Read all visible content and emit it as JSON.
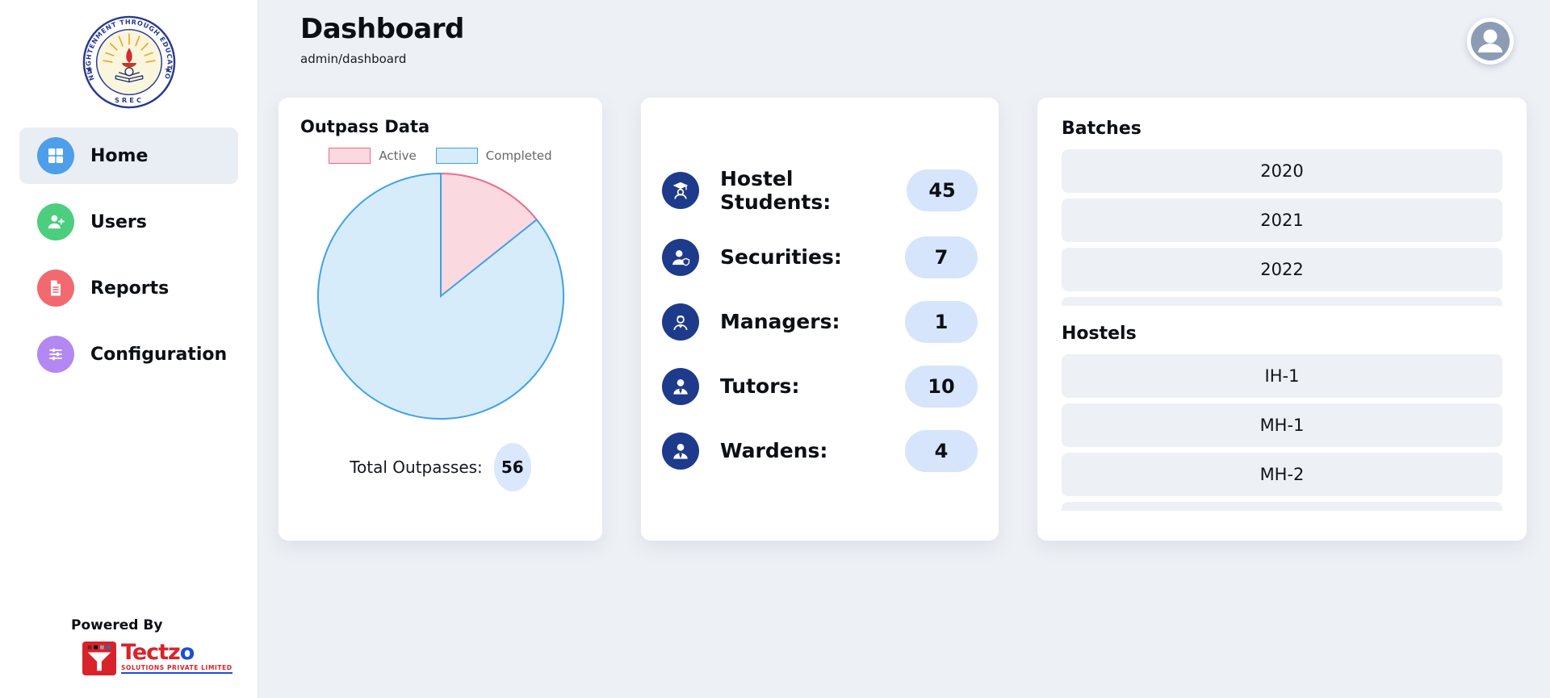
{
  "app": {
    "title": "Dashboard",
    "breadcrumb": "admin/dashboard"
  },
  "sidebar": {
    "logo": {
      "top_text": "ENLIGHTENMENT THROUGH EDUCATION",
      "bottom_text": "SREC"
    },
    "items": [
      {
        "label": "Home",
        "icon": "grid-icon",
        "color": "#4e9fe9",
        "active": true
      },
      {
        "label": "Users",
        "icon": "user-plus-icon",
        "color": "#4bce7e",
        "active": false
      },
      {
        "label": "Reports",
        "icon": "document-icon",
        "color": "#f2696f",
        "active": false
      },
      {
        "label": "Configuration",
        "icon": "sliders-icon",
        "color": "#b388f2",
        "active": false
      }
    ],
    "powered_by": {
      "label": "Powered By",
      "brand_main": "Tectz",
      "brand_accent": "o",
      "brand_sub": "SOLUTIONS PRIVATE LIMITED"
    }
  },
  "header": {
    "avatar_icon": "user-avatar-icon"
  },
  "outpass_card": {
    "title": "Outpass Data",
    "total_label": "Total Outpasses:",
    "total_value": "56"
  },
  "chart_data": {
    "type": "pie",
    "title": "Outpass Data",
    "labels": [
      "Active",
      "Completed"
    ],
    "values": [
      8,
      48
    ],
    "total": 56,
    "legend_position": "top",
    "start_angle_deg": -90,
    "direction": "clockwise",
    "series_colors": [
      {
        "fill": "#fbd9e1",
        "border": "#f06a8a"
      },
      {
        "fill": "#d7ecfb",
        "border": "#41a1e8"
      }
    ]
  },
  "stats_card": {
    "rows": [
      {
        "icon": "student-icon",
        "label": "Hostel Students:",
        "value": "45"
      },
      {
        "icon": "security-icon",
        "label": "Securities:",
        "value": "7"
      },
      {
        "icon": "manager-icon",
        "label": "Managers:",
        "value": "1"
      },
      {
        "icon": "tutor-icon",
        "label": "Tutors:",
        "value": "10"
      },
      {
        "icon": "warden-icon",
        "label": "Wardens:",
        "value": "4"
      }
    ]
  },
  "lists_card": {
    "batches": {
      "title": "Batches",
      "items": [
        "2020",
        "2021",
        "2022"
      ]
    },
    "hostels": {
      "title": "Hostels",
      "items": [
        "IH-1",
        "MH-1",
        "MH-2"
      ]
    }
  },
  "colors": {
    "navy_icon": "#1e3a8a",
    "value_pill": "#d6e5fb",
    "active_fill": "#fbd9e1",
    "active_border": "#f06a8a",
    "completed_fill": "#d7ecfb",
    "completed_border": "#41a1e8",
    "nav_blue": "#4e9fe9",
    "nav_green": "#4bce7e",
    "nav_red": "#f2696f",
    "nav_purple": "#b388f2",
    "avatar": "#8d9cb5",
    "tectzo_red": "#d8232a",
    "tectzo_blue": "#1a4fd6",
    "page_bg": "#edf0f5"
  }
}
